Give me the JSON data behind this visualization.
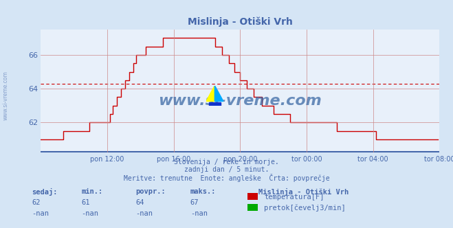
{
  "title": "Mislinja - Otiški Vrh",
  "bg_color": "#d5e5f5",
  "plot_bg_color": "#e8f0fa",
  "line_color": "#cc0000",
  "avg_line_color": "#cc0000",
  "avg_value": 64.3,
  "y_min": 61,
  "y_max": 67.5,
  "y_ticks": [
    62,
    64,
    66
  ],
  "x_tick_labels": [
    "pon 12:00",
    "pon 16:00",
    "pon 20:00",
    "tor 00:00",
    "tor 04:00",
    "tor 08:00"
  ],
  "subtitle_lines": [
    "Slovenija / reke in morje.",
    "zadnji dan / 5 minut.",
    "Meritve: trenutne  Enote: angleške  Črta: povprečje"
  ],
  "footer_header": [
    "sedaj:",
    "min.:",
    "povpr.:",
    "maks.:"
  ],
  "footer_row1": [
    "62",
    "61",
    "64",
    "67"
  ],
  "footer_row2": [
    "-nan",
    "-nan",
    "-nan",
    "-nan"
  ],
  "station_name": "Mislinja - Otiški Vrh",
  "legend_labels": [
    "temperatura[F]",
    "pretok[čevelj3/min]"
  ],
  "legend_colors": [
    "#cc0000",
    "#00aa00"
  ],
  "watermark": "www.si-vreme.com",
  "watermark_color": "#3060a0",
  "grid_color": "#cc8888",
  "axis_color": "#4466aa",
  "text_color": "#4466aa"
}
